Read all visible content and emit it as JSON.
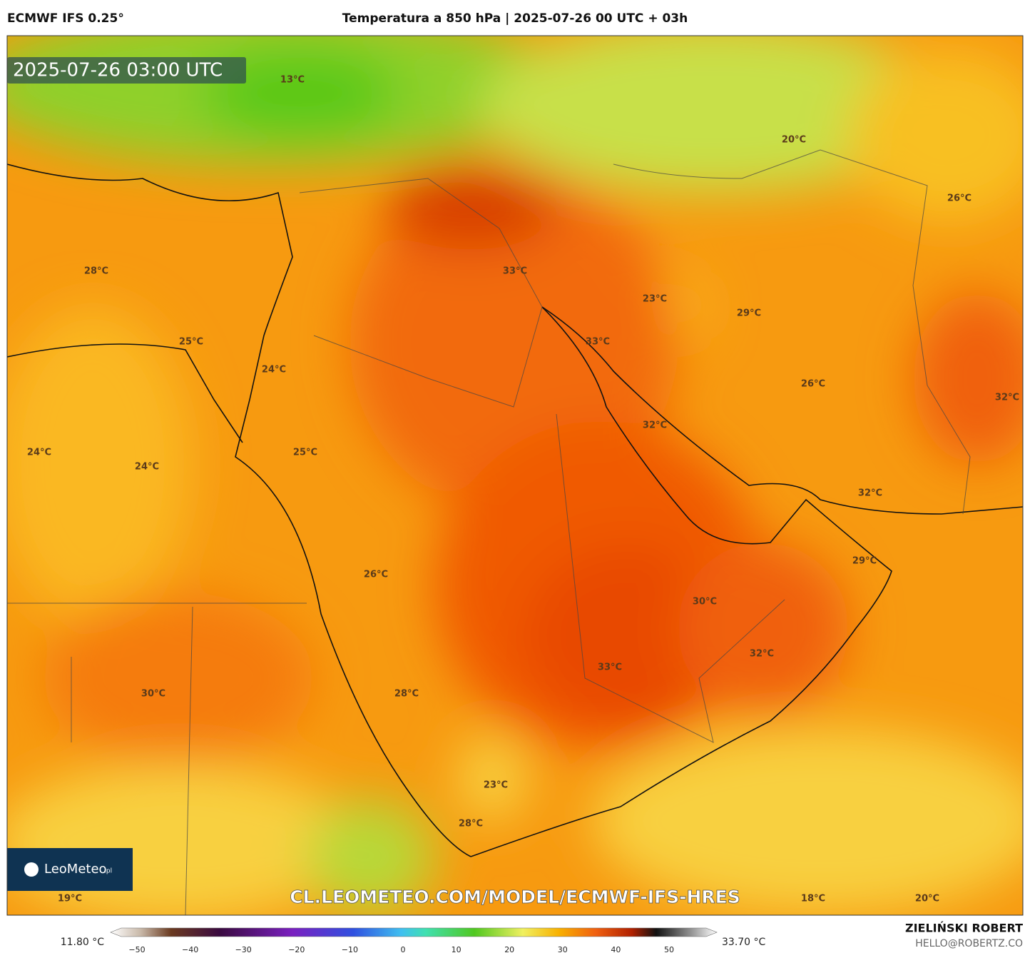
{
  "header": {
    "model": "ECMWF IFS 0.25°",
    "title": "Temperatura a 850 hPa | 2025-07-26 00 UTC + 03h"
  },
  "map": {
    "valid_time": "2025-07-26 03:00 UTC",
    "watermark": "CL.LEOMETEO.COM/MODEL/ECMWF-IFS-HRES",
    "logo": {
      "name": "LeoMeteo",
      "suffix": ".pl"
    },
    "labels": [
      "13°C",
      "20°C",
      "26°C",
      "28°C",
      "33°C",
      "23°C",
      "29°C",
      "33°C",
      "25°C",
      "24°C",
      "26°C",
      "32°C",
      "32°C",
      "24°C",
      "25°C",
      "24°C",
      "32°C",
      "29°C",
      "26°C",
      "30°C",
      "32°C",
      "33°C",
      "30°C",
      "28°C",
      "23°C",
      "28°C",
      "19°C",
      "18°C",
      "20°C"
    ]
  },
  "colorbar": {
    "min": "11.80 °C",
    "max": "33.70 °C",
    "ticks": [
      "−50",
      "−40",
      "−30",
      "−20",
      "−10",
      "0",
      "10",
      "20",
      "30",
      "40",
      "50"
    ]
  },
  "footer": {
    "author": "ZIELIŃSKI ROBERT",
    "email": "HELLO@ROBERTZ.CO"
  }
}
